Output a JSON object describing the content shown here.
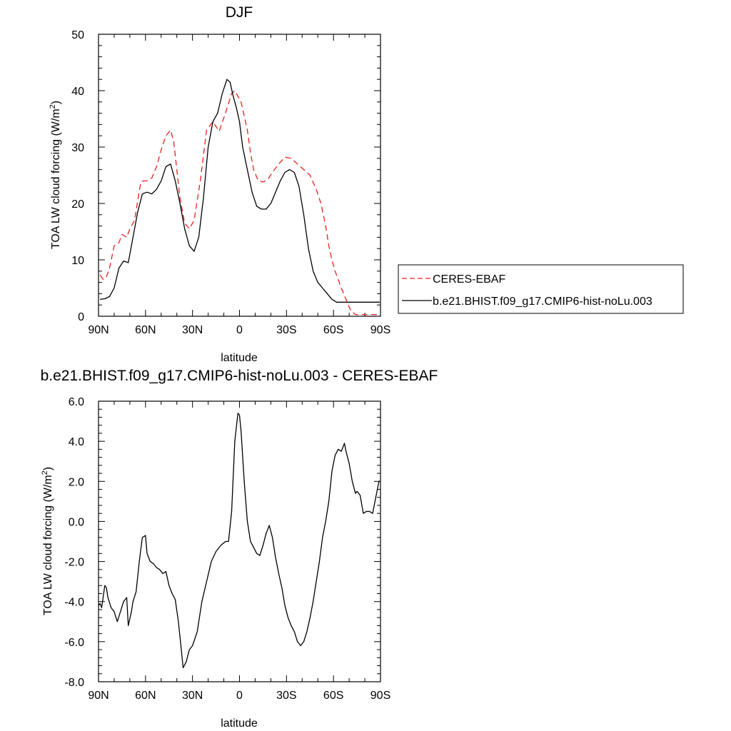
{
  "chart_data": [
    {
      "type": "line",
      "title": "DJF",
      "xlabel": "latitude",
      "ylabel": "TOA LW cloud forcing (W/m",
      "ylabel_sup": "2",
      "ylabel_end": ")",
      "xlim": [
        90,
        -90
      ],
      "ylim": [
        0,
        50
      ],
      "x_ticks": [
        90,
        60,
        30,
        0,
        -30,
        -60,
        -90
      ],
      "x_tick_labels": [
        "90N",
        "60N",
        "30N",
        "0",
        "30S",
        "60S",
        "90S"
      ],
      "y_ticks": [
        0,
        10,
        20,
        30,
        40,
        50
      ],
      "y_tick_labels": [
        "0",
        "10",
        "20",
        "30",
        "40",
        "50"
      ],
      "legend_placement": "right",
      "series": [
        {
          "name": "CERES-EBAF",
          "color": "#e8201f",
          "dash": "dashed",
          "x": [
            89,
            87,
            85,
            83,
            80,
            77,
            75,
            72,
            70,
            67,
            65,
            63,
            61,
            59,
            56,
            53,
            50,
            47,
            44,
            42,
            40,
            38,
            35,
            32,
            29,
            25,
            21,
            17,
            13,
            9,
            5,
            3,
            1,
            -1,
            -3,
            -5,
            -7,
            -9,
            -12,
            -15,
            -18,
            -21,
            -25,
            -29,
            -33,
            -37,
            -41,
            -45,
            -49,
            -52,
            -55,
            -57,
            -59,
            -61,
            -63,
            -65,
            -68,
            -71,
            -74,
            -77,
            -80,
            -83,
            -86,
            -88,
            -89.5
          ],
          "y": [
            7.3,
            6.5,
            7.0,
            8.5,
            12.5,
            13.0,
            14.5,
            14.0,
            15.5,
            17.0,
            20.5,
            23.8,
            24.0,
            24.0,
            24.5,
            26.5,
            29.5,
            32.0,
            33.0,
            31.0,
            26.0,
            21.0,
            16.5,
            15.5,
            17.0,
            24.0,
            33.0,
            34.5,
            32.8,
            36.0,
            39.5,
            40.0,
            39.0,
            38.0,
            35.5,
            33.0,
            29.0,
            26.0,
            24.0,
            23.8,
            24.2,
            25.5,
            27.0,
            28.2,
            28.0,
            27.0,
            26.0,
            25.0,
            22.5,
            20.0,
            16.0,
            12.5,
            10.0,
            8.0,
            6.5,
            5.0,
            3.0,
            1.0,
            0.3,
            0.3,
            0.3,
            0.3,
            0.3,
            0.3,
            0.3
          ]
        },
        {
          "name": "b.e21.BHIST.f09_g17.CMIP6-hist-noLu.003",
          "color": "#000000",
          "dash": "solid",
          "x": [
            89,
            86,
            83,
            80,
            77,
            74,
            71,
            68,
            65,
            62,
            59,
            56,
            53,
            50,
            47,
            44,
            41,
            38,
            35,
            32,
            29,
            26,
            23,
            20,
            17,
            14,
            11,
            8,
            6,
            4,
            2,
            0,
            -2,
            -5,
            -8,
            -11,
            -14,
            -17,
            -20,
            -23,
            -26,
            -29,
            -32,
            -35,
            -38,
            -41,
            -44,
            -47,
            -50,
            -53,
            -56,
            -59,
            -62,
            -65,
            -68,
            -71,
            -74,
            -77,
            -80,
            -83,
            -86,
            -88,
            -89.5
          ],
          "y": [
            3.0,
            3.1,
            3.5,
            5.0,
            8.5,
            9.8,
            9.5,
            14.0,
            18.5,
            21.7,
            22.0,
            21.7,
            22.5,
            24.0,
            26.5,
            27.0,
            24.0,
            20.0,
            15.5,
            12.5,
            11.5,
            14.0,
            21.0,
            30.0,
            34.5,
            36.0,
            39.5,
            42.0,
            41.5,
            39.0,
            37.0,
            34.5,
            30.0,
            26.0,
            22.0,
            19.5,
            19.0,
            19.0,
            20.0,
            22.0,
            24.0,
            25.5,
            26.0,
            25.5,
            23.0,
            18.0,
            12.0,
            8.0,
            6.0,
            5.0,
            4.0,
            3.0,
            2.5,
            2.5,
            2.5,
            2.5,
            2.5,
            2.5,
            2.5,
            2.5,
            2.5,
            2.5,
            2.5
          ]
        }
      ]
    },
    {
      "type": "line",
      "title": "b.e21.BHIST.f09_g17.CMIP6-hist-noLu.003 - CERES-EBAF",
      "xlabel": "latitude",
      "ylabel": "TOA LW cloud forcing (W/m",
      "ylabel_sup": "2",
      "ylabel_end": ")",
      "xlim": [
        90,
        -90
      ],
      "ylim": [
        -8,
        6
      ],
      "x_ticks": [
        90,
        60,
        30,
        0,
        -30,
        -60,
        -90
      ],
      "x_tick_labels": [
        "90N",
        "60N",
        "30N",
        "0",
        "30S",
        "60S",
        "90S"
      ],
      "y_ticks": [
        -8,
        -6,
        -4,
        -2,
        0,
        2,
        4,
        6
      ],
      "y_tick_labels": [
        "-8.0",
        "-6.0",
        "-4.0",
        "-2.0",
        "0.0",
        "2.0",
        "4.0",
        "6.0"
      ],
      "series": [
        {
          "color": "#000000",
          "dash": "solid",
          "x": [
            90,
            89,
            88,
            86,
            85,
            84,
            82,
            80,
            78,
            76,
            74,
            72,
            71,
            69,
            68,
            66,
            64,
            62,
            60,
            59,
            57,
            55,
            53,
            51,
            49,
            47,
            45,
            43,
            41,
            39,
            37,
            36,
            34,
            32,
            30,
            27,
            24,
            21,
            18,
            15,
            12,
            9,
            7,
            5,
            3,
            1,
            0,
            -1,
            -3,
            -5,
            -7,
            -9,
            -11,
            -13,
            -15,
            -17,
            -19,
            -21,
            -23,
            -25,
            -27,
            -29,
            -31,
            -33,
            -35,
            -37,
            -39,
            -41,
            -43,
            -45,
            -47,
            -49,
            -51,
            -53,
            -55,
            -57,
            -59,
            -61,
            -63,
            -65,
            -67,
            -68,
            -70,
            -72,
            -74,
            -75,
            -77,
            -79,
            -81,
            -83,
            -85,
            -87,
            -89,
            -90
          ],
          "y": [
            -4.2,
            -4.1,
            -4.3,
            -3.2,
            -3.3,
            -3.8,
            -4.3,
            -4.5,
            -5.0,
            -4.5,
            -4.0,
            -3.8,
            -5.2,
            -4.5,
            -4.0,
            -3.5,
            -2.0,
            -0.8,
            -0.7,
            -1.6,
            -2.0,
            -2.1,
            -2.3,
            -2.4,
            -2.6,
            -2.5,
            -3.2,
            -3.6,
            -3.9,
            -5.0,
            -6.5,
            -7.3,
            -7.0,
            -6.4,
            -6.2,
            -5.5,
            -4.0,
            -3.0,
            -2.0,
            -1.5,
            -1.2,
            -1.0,
            -1.0,
            0.5,
            4.0,
            5.4,
            5.3,
            4.5,
            2.0,
            0.0,
            -1.0,
            -1.3,
            -1.6,
            -1.7,
            -1.2,
            -0.6,
            -0.2,
            -0.8,
            -1.8,
            -2.6,
            -3.3,
            -4.2,
            -4.8,
            -5.2,
            -5.5,
            -6.0,
            -6.2,
            -6.0,
            -5.5,
            -4.8,
            -4.0,
            -3.0,
            -2.0,
            -0.8,
            0.0,
            1.0,
            2.5,
            3.3,
            3.6,
            3.5,
            3.9,
            3.5,
            2.9,
            2.0,
            1.4,
            1.5,
            1.3,
            0.4,
            0.5,
            0.5,
            0.4,
            1.2,
            2.0,
            2.0
          ]
        }
      ]
    }
  ]
}
